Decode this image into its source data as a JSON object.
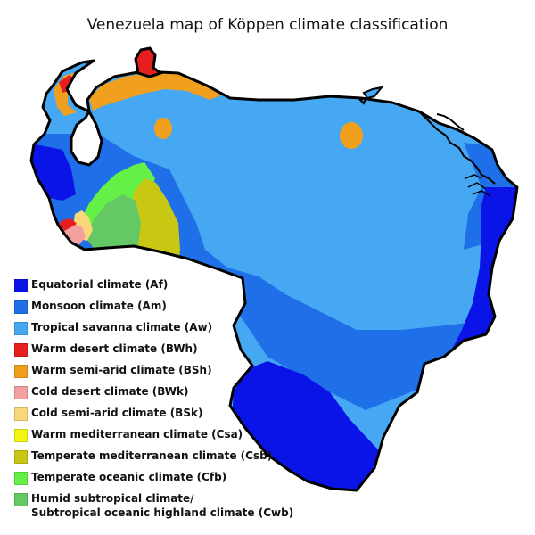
{
  "title": "Venezuela map of Köppen climate classification",
  "colors": {
    "Af": "#0a14e6",
    "Am": "#1e6fe8",
    "Aw": "#46a8f2",
    "BWh": "#e61e1e",
    "BSh": "#f0a01e",
    "BWk": "#f5a0a0",
    "BSk": "#f8d878",
    "Csa": "#f5f514",
    "Csb": "#c8c814",
    "Cfb": "#64f046",
    "Cwb": "#64c864",
    "ocean": "#ffffff",
    "outline": "#000000"
  },
  "legend": [
    {
      "code": "Af",
      "label": "Equatorial climate (Af)"
    },
    {
      "code": "Am",
      "label": "Monsoon climate (Am)"
    },
    {
      "code": "Aw",
      "label": "Tropical savanna climate (Aw)"
    },
    {
      "code": "BWh",
      "label": "Warm desert climate (BWh)"
    },
    {
      "code": "BSh",
      "label": "Warm semi-arid climate (BSh)"
    },
    {
      "code": "BWk",
      "label": "Cold desert climate (BWk)"
    },
    {
      "code": "BSk",
      "label": "Cold semi-arid climate (BSk)"
    },
    {
      "code": "Csa",
      "label": "Warm mediterranean climate (Csa)"
    },
    {
      "code": "Csb",
      "label": "Temperate mediterranean climate (Csb)"
    },
    {
      "code": "Cfb",
      "label": "Temperate oceanic climate (Cfb)"
    },
    {
      "code": "Cwb",
      "label": "Humid subtropical climate/\nSubtropical oceanic highland climate (Cwb)"
    }
  ]
}
